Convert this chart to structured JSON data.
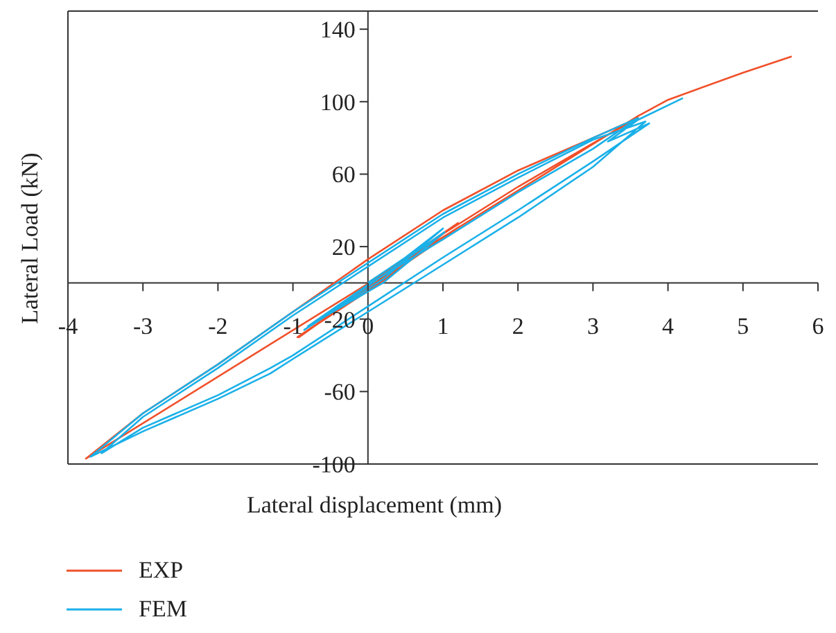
{
  "chart_data": {
    "type": "line",
    "xlabel": "Lateral displacement (mm)",
    "ylabel": "Lateral Load (kN)",
    "xlim": [
      -4,
      6
    ],
    "ylim": [
      -100,
      150
    ],
    "xticks": [
      -4,
      -3,
      -2,
      -1,
      0,
      1,
      2,
      3,
      4,
      5,
      6
    ],
    "yticks": [
      -100,
      -60,
      -20,
      20,
      60,
      100,
      140
    ],
    "legend": "bottom left",
    "marker": "none",
    "series": [
      {
        "name": "EXP",
        "color": "#f0502a",
        "x": [
          0,
          0.6,
          1.2,
          0.3,
          -0.92,
          0.2,
          1.22,
          0.2,
          -0.94,
          0.2,
          1,
          2,
          3,
          3.6,
          3,
          2,
          1,
          0,
          -1,
          -2,
          -3,
          -3.76,
          3.6,
          4,
          5,
          5.65
        ],
        "values": [
          0,
          16,
          33,
          6,
          -30,
          4,
          31,
          2,
          -30,
          1,
          27,
          53,
          77,
          91,
          80,
          62,
          40,
          13,
          -16,
          -45,
          -72,
          -97,
          92,
          101,
          116,
          125
        ]
      },
      {
        "name": "FEM",
        "color": "#1ab0e8",
        "x": [
          0,
          0.5,
          1,
          0.2,
          -0.85,
          0.2,
          1.02,
          0.2,
          -0.8,
          0,
          1,
          2,
          3,
          3.6,
          3,
          2,
          1,
          0,
          -1,
          -2,
          -3,
          -3.7,
          -3,
          -2,
          -1.3,
          -1,
          0,
          1,
          2,
          3,
          3.7,
          3,
          2,
          1,
          0,
          -1,
          -2,
          -3,
          -3.55,
          -3,
          -2,
          -1.3,
          -1,
          0,
          1,
          2,
          3,
          3.75,
          3.2,
          3.6,
          4.2
        ],
        "values": [
          0,
          14,
          30,
          2,
          -26,
          4,
          28,
          0,
          -24,
          -1,
          24,
          50,
          74,
          91,
          80,
          60,
          38,
          11,
          -16,
          -45,
          -72,
          -96,
          -82,
          -64,
          -50,
          -42,
          -16,
          10,
          36,
          64,
          89,
          79,
          58,
          36,
          9,
          -18,
          -47,
          -74,
          -94,
          -80,
          -62,
          -47,
          -40,
          -13,
          14,
          40,
          67,
          88,
          78,
          90,
          102
        ]
      }
    ]
  }
}
